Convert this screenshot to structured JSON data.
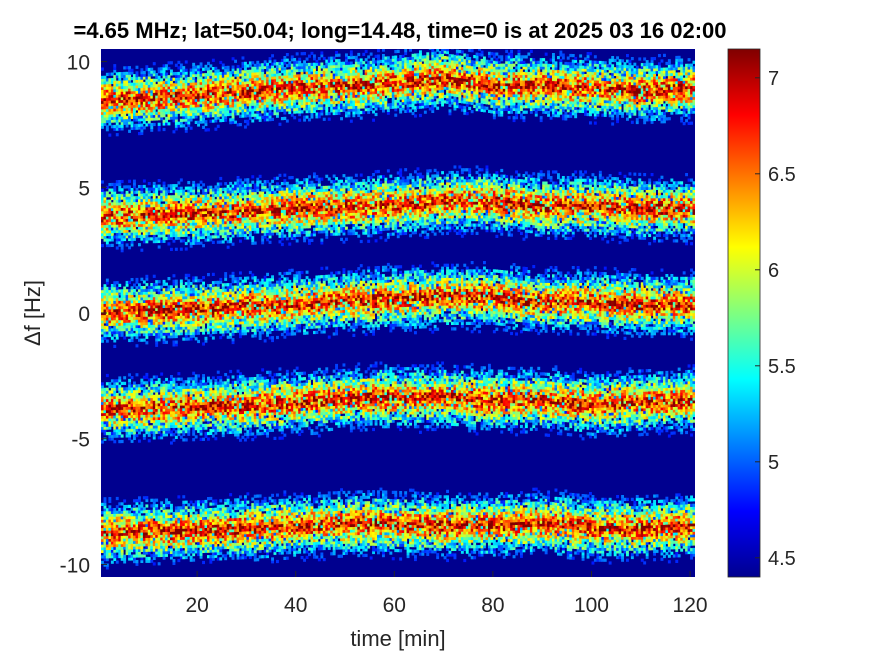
{
  "chart_data": {
    "type": "heatmap",
    "title": "=4.65 MHz;  lat=50.04; long=14.48, time=0 is at 2025 03 16 02:00",
    "xlabel": "time [min]",
    "ylabel": "Δf [Hz]",
    "xlim": [
      0.5,
      121
    ],
    "ylim": [
      -10.5,
      10.5
    ],
    "x_ticks": [
      20,
      40,
      60,
      80,
      100,
      120
    ],
    "y_ticks": [
      10,
      5,
      0,
      -5,
      -10
    ],
    "colorbar": {
      "range": [
        4.4,
        7.15
      ],
      "ticks": [
        4.5,
        5,
        5.5,
        6,
        6.5,
        7
      ],
      "colormap": "jet"
    },
    "series": [
      {
        "x": [
          0,
          20,
          40,
          55,
          70,
          80,
          90,
          100,
          110,
          121
        ],
        "y": [
          8.4,
          8.6,
          8.9,
          9.0,
          9.3,
          9.0,
          9.0,
          8.9,
          8.8,
          8.9
        ]
      },
      {
        "x": [
          0,
          20,
          40,
          55,
          70,
          80,
          90,
          100,
          110,
          121
        ],
        "y": [
          3.8,
          3.9,
          4.1,
          4.2,
          4.4,
          4.4,
          4.2,
          4.2,
          4.1,
          4.1
        ]
      },
      {
        "x": [
          0,
          20,
          40,
          55,
          70,
          80,
          90,
          100,
          110,
          121
        ],
        "y": [
          0.0,
          0.1,
          0.3,
          0.5,
          0.6,
          0.6,
          0.4,
          0.4,
          0.3,
          0.3
        ]
      },
      {
        "x": [
          0,
          20,
          40,
          55,
          70,
          80,
          90,
          100,
          110,
          121
        ],
        "y": [
          -3.9,
          -3.8,
          -3.6,
          -3.4,
          -3.4,
          -3.5,
          -3.5,
          -3.7,
          -3.6,
          -3.5
        ]
      },
      {
        "x": [
          0,
          20,
          40,
          55,
          70,
          80,
          90,
          100,
          110,
          121
        ],
        "y": [
          -8.8,
          -8.7,
          -8.5,
          -8.4,
          -8.5,
          -8.5,
          -8.4,
          -8.6,
          -8.6,
          -8.5
        ]
      }
    ]
  }
}
